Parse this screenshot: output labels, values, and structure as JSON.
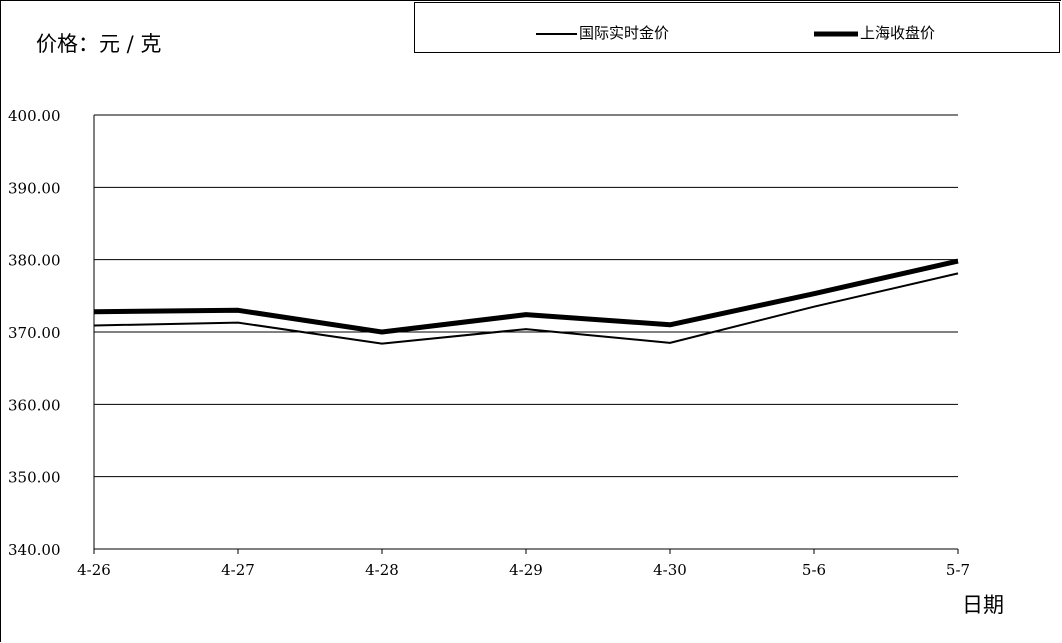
{
  "chart_data": {
    "type": "line",
    "title": "",
    "unit_label": "价格：元 / 克",
    "xlabel": "日期",
    "ylabel": "价格：元 / 克",
    "categories": [
      "4-26",
      "4-27",
      "4-28",
      "4-29",
      "4-30",
      "5-6",
      "5-7"
    ],
    "ylim": [
      340,
      400
    ],
    "yticks": [
      "340.00",
      "350.00",
      "360.00",
      "370.00",
      "380.00",
      "390.00",
      "400.00"
    ],
    "ytick_values": [
      340,
      350,
      360,
      370,
      380,
      390,
      400
    ],
    "grid": true,
    "legend_position": "top-right",
    "series": [
      {
        "name": "国际实时金价",
        "values": [
          370.9,
          371.3,
          368.4,
          370.4,
          368.5,
          373.5,
          378.1
        ],
        "color": "#000000",
        "style": "thin"
      },
      {
        "name": "上海收盘价",
        "values": [
          372.8,
          373.0,
          370.0,
          372.4,
          371.0,
          375.3,
          379.8
        ],
        "color": "#000000",
        "style": "thick"
      }
    ]
  }
}
